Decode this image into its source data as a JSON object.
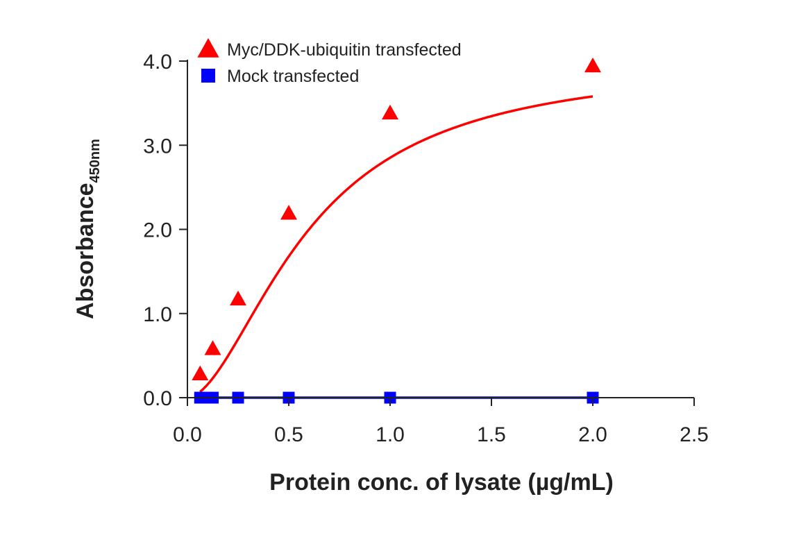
{
  "chart_data": {
    "type": "line",
    "xlabel": "Protein conc. of lysate (µg/mL)",
    "ylabel_main": "Absorbance",
    "ylabel_sub": "450nm",
    "xlim": [
      0,
      2.5
    ],
    "ylim": [
      0,
      4
    ],
    "x_ticks": [
      {
        "value": 0,
        "label": "0.0"
      },
      {
        "value": 0.5,
        "label": "0.5"
      },
      {
        "value": 1.0,
        "label": "1.0"
      },
      {
        "value": 1.5,
        "label": "1.5"
      },
      {
        "value": 2.0,
        "label": "2.0"
      },
      {
        "value": 2.5,
        "label": "2.5"
      }
    ],
    "y_ticks": [
      {
        "value": 0,
        "label": "0.0"
      },
      {
        "value": 1,
        "label": "1.0"
      },
      {
        "value": 2,
        "label": "2.0"
      },
      {
        "value": 3,
        "label": "3.0"
      },
      {
        "value": 4,
        "label": "4.0"
      }
    ],
    "grid": false,
    "legend_position": "top-left",
    "series": [
      {
        "name": "Myc/DDK-ubiquitin transfected",
        "color": "#ff0000",
        "marker": "triangle",
        "x": [
          0.0625,
          0.125,
          0.25,
          0.5,
          1.0,
          2.0
        ],
        "y": [
          0.28,
          0.58,
          1.17,
          2.19,
          3.38,
          3.94
        ],
        "curve": {
          "type": "4PL",
          "bottom": 0.0,
          "top": 4.0,
          "ec50": 0.6,
          "hill": 1.78
        }
      },
      {
        "name": "Mock transfected",
        "color": "#0000ff",
        "marker": "square",
        "x": [
          0.0625,
          0.09375,
          0.125,
          0.25,
          0.5,
          1.0,
          2.0
        ],
        "y": [
          0.0,
          0.0,
          0.0,
          0.0,
          0.0,
          0.0,
          0.0
        ]
      }
    ]
  }
}
